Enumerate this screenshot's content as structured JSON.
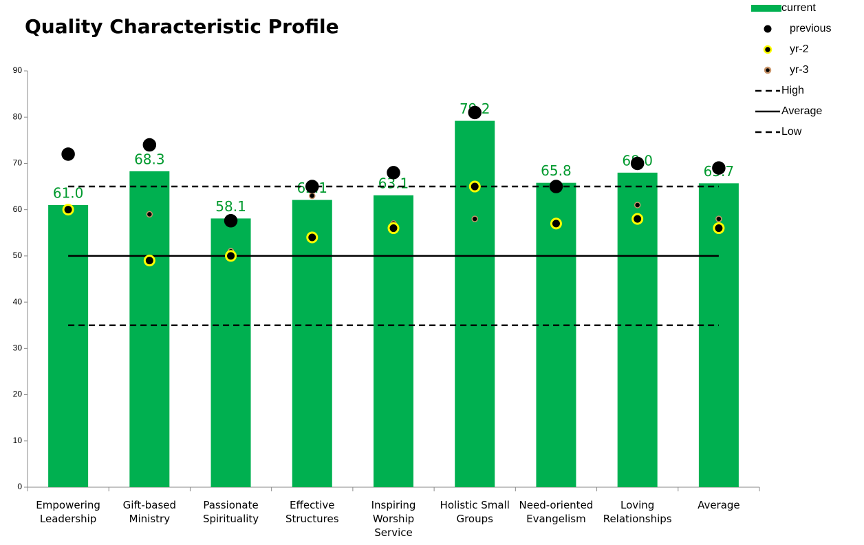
{
  "chart_data": {
    "type": "bar",
    "title": "Quality Characteristic Profile",
    "categories": [
      "Empowering Leadership",
      "Gift-based Ministry",
      "Passionate Spirituality",
      "Effective Structures",
      "Inspiring Worship Service",
      "Holistic Small Groups",
      "Need-oriented Evangelism",
      "Loving Relationships",
      "Average"
    ],
    "ylim": [
      0,
      90
    ],
    "yticks": [
      0,
      10,
      20,
      30,
      40,
      50,
      60,
      70,
      80,
      90
    ],
    "series": [
      {
        "name": "current",
        "type": "bar",
        "color": "#00b050",
        "values": [
          61.0,
          68.3,
          58.1,
          62.1,
          63.1,
          79.2,
          65.8,
          68.0,
          65.7
        ],
        "value_labels": [
          "61.0",
          "68.3",
          "58.1",
          "62.1",
          "63.1",
          "79.2",
          "65.8",
          "68.0",
          "65.7"
        ],
        "label_color": "#009a2e"
      },
      {
        "name": "previous",
        "type": "scatter",
        "color": "#000000",
        "edge": "#000000",
        "size": 9,
        "values": [
          72,
          74,
          57.6,
          65,
          68,
          81,
          65,
          70,
          69
        ]
      },
      {
        "name": "yr-2",
        "type": "scatter",
        "color": "#000000",
        "edge": "#ffff00",
        "size": 7,
        "values": [
          60,
          49,
          50,
          54,
          56,
          65,
          57,
          58,
          56
        ]
      },
      {
        "name": "yr-3",
        "type": "scatter",
        "color": "#000000",
        "edge": "#c8946a",
        "size": 4,
        "values": [
          60,
          59,
          51,
          63,
          57,
          58,
          57,
          61,
          58
        ]
      },
      {
        "name": "High",
        "type": "line",
        "color": "#000000",
        "dashed": true,
        "values": [
          65,
          65,
          65,
          65,
          65,
          65,
          65,
          65,
          65
        ]
      },
      {
        "name": "Average",
        "type": "line",
        "color": "#000000",
        "dashed": false,
        "values": [
          50,
          50,
          50,
          50,
          50,
          50,
          50,
          50,
          50
        ]
      },
      {
        "name": "Low",
        "type": "line",
        "color": "#000000",
        "dashed": true,
        "values": [
          35,
          35,
          35,
          35,
          35,
          35,
          35,
          35,
          35
        ]
      }
    ]
  }
}
